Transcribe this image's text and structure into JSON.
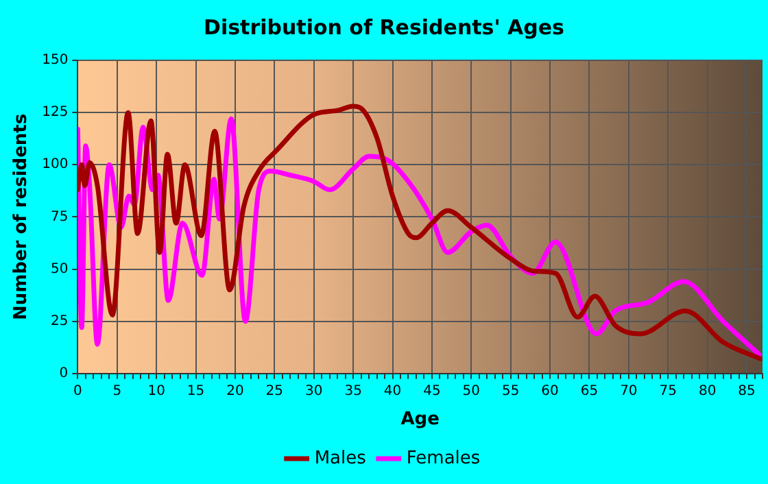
{
  "chart_data": {
    "type": "line",
    "title": "Distribution of Residents' Ages",
    "xlabel": "Age",
    "ylabel": "Number of residents",
    "xlim": [
      0,
      87
    ],
    "xticks": [
      0,
      5,
      10,
      15,
      20,
      25,
      30,
      35,
      40,
      45,
      50,
      55,
      60,
      65,
      70,
      75,
      80,
      85
    ],
    "ylim": [
      0,
      150
    ],
    "yticks": [
      0,
      25,
      50,
      75,
      100,
      125,
      150
    ],
    "grid": true,
    "legend": "bottom",
    "marker": "none",
    "line_style": "solid",
    "series": [
      {
        "name": "Males",
        "color": "#a00000",
        "x": [
          0,
          0.5,
          0.9,
          1.5,
          2.5,
          4.4,
          6.4,
          7.6,
          9.3,
          10.4,
          11.4,
          12.5,
          13.6,
          15.7,
          17.4,
          19.3,
          21.1,
          23,
          25.3,
          30,
          33,
          35,
          36,
          38,
          40,
          42,
          43,
          45,
          47,
          50,
          55,
          58,
          60.7,
          63.5,
          65.7,
          68.3,
          71.5,
          77.2,
          82,
          86.8
        ],
        "values": [
          88,
          100,
          90,
          101,
          90,
          28,
          125,
          67,
          121,
          58,
          105,
          72,
          100,
          66,
          116,
          40,
          80,
          97,
          107,
          124,
          126,
          128,
          127,
          113,
          85,
          67,
          65,
          72,
          78,
          70,
          55,
          49,
          48,
          27,
          37,
          23,
          19,
          30,
          15,
          7
        ]
      },
      {
        "name": "Females",
        "color": "#ff00ff",
        "x": [
          0,
          0.5,
          1,
          1.5,
          2.5,
          4,
          5.5,
          6.5,
          7.2,
          8.3,
          9.5,
          10.2,
          11.5,
          13.3,
          15.8,
          17.3,
          18,
          19.5,
          21.3,
          23,
          24.5,
          27,
          30,
          32,
          35,
          37,
          39,
          42,
          45,
          47,
          50,
          52,
          55,
          57.8,
          60.7,
          65.9,
          68.3,
          72.4,
          77,
          82,
          86.6
        ],
        "values": [
          117,
          22,
          109,
          90,
          14,
          100,
          70,
          85,
          81,
          118,
          88,
          95,
          35,
          72,
          47,
          93,
          74,
          122,
          25,
          88,
          97,
          95,
          92,
          88,
          98,
          104,
          103,
          92,
          74,
          58,
          68,
          71,
          56,
          48,
          63,
          19,
          30,
          34,
          44,
          25,
          9
        ]
      }
    ]
  }
}
